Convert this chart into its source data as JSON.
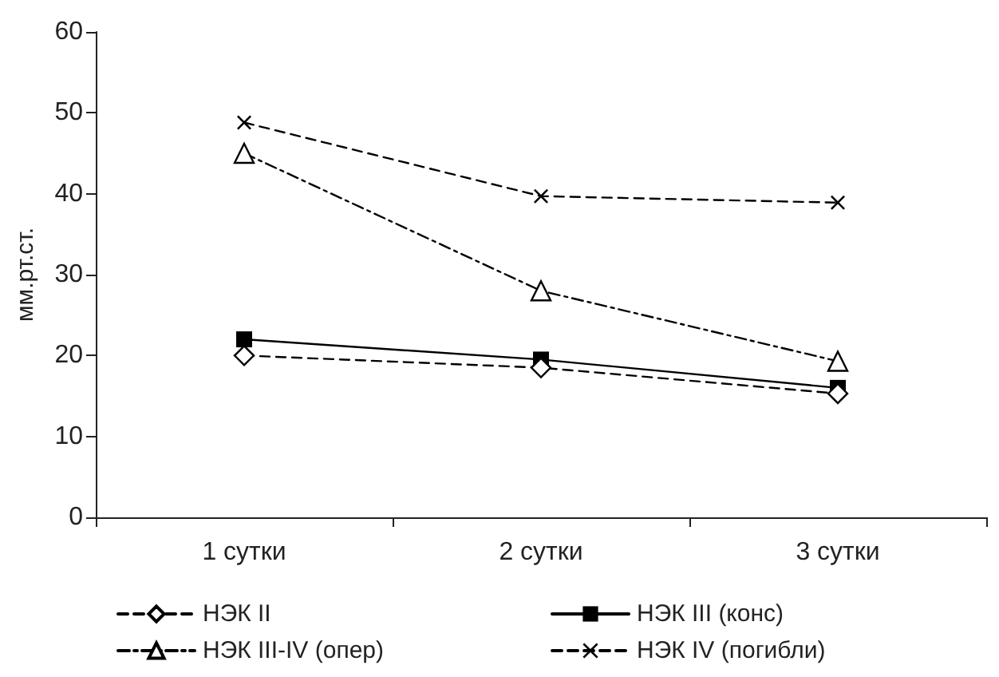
{
  "chart_data": {
    "type": "line",
    "ylabel": "мм.рт.ст.",
    "categories": [
      "1 сутки",
      "2 сутки",
      "3 сутки"
    ],
    "series": [
      {
        "name": "НЭК II",
        "color": "#000000",
        "values": [
          20,
          18.5,
          15.3
        ],
        "marker": "diamond",
        "line_style": "dashed"
      },
      {
        "name": "НЭК III (конс)",
        "color": "#000000",
        "values": [
          22,
          19.5,
          16
        ],
        "marker": "square",
        "line_style": "solid"
      },
      {
        "name": "НЭК III-IV (опер)",
        "color": "#000000",
        "values": [
          45,
          28,
          19.3
        ],
        "marker": "triangle",
        "line_style": "dotted"
      },
      {
        "name": "НЭК IV (погибли)",
        "color": "#000000",
        "values": [
          48.8,
          39.7,
          38.9
        ],
        "marker": "cross",
        "line_style": "dashed"
      }
    ],
    "ylim": [
      0,
      60
    ],
    "yticks": [
      0,
      10,
      20,
      30,
      40,
      50,
      60
    ],
    "grid": false,
    "legend": "bottom"
  }
}
